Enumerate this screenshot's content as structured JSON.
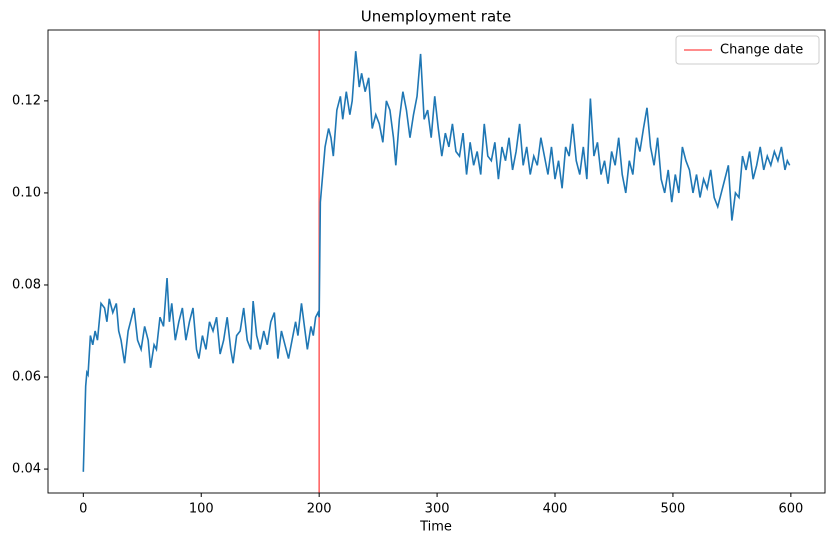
{
  "chart_data": {
    "type": "line",
    "title": "Unemployment rate",
    "xlabel": "Time",
    "x": [
      0,
      2,
      3,
      4,
      6,
      8,
      10,
      12,
      15,
      18,
      20,
      22,
      25,
      28,
      30,
      32,
      35,
      38,
      40,
      43,
      46,
      49,
      52,
      55,
      57,
      60,
      62,
      65,
      68,
      71,
      73,
      75,
      78,
      81,
      84,
      87,
      90,
      93,
      96,
      98,
      101,
      104,
      107,
      110,
      113,
      116,
      119,
      122,
      125,
      127,
      130,
      133,
      136,
      139,
      142,
      144,
      147,
      150,
      153,
      156,
      159,
      162,
      165,
      168,
      171,
      174,
      177,
      180,
      182,
      185,
      188,
      190,
      193,
      195,
      197,
      199,
      200,
      201,
      203,
      205,
      208,
      210,
      212,
      215,
      218,
      220,
      223,
      226,
      228,
      231,
      234,
      236,
      239,
      242,
      245,
      248,
      251,
      254,
      257,
      260,
      263,
      265,
      268,
      271,
      274,
      277,
      280,
      283,
      286,
      289,
      292,
      295,
      298,
      301,
      304,
      307,
      310,
      313,
      316,
      319,
      322,
      325,
      328,
      331,
      334,
      337,
      340,
      343,
      346,
      349,
      352,
      355,
      358,
      361,
      364,
      367,
      370,
      373,
      376,
      379,
      382,
      385,
      388,
      391,
      394,
      397,
      400,
      403,
      406,
      409,
      412,
      415,
      418,
      421,
      424,
      427,
      430,
      433,
      436,
      439,
      442,
      445,
      448,
      451,
      454,
      457,
      460,
      463,
      466,
      469,
      472,
      475,
      478,
      481,
      484,
      487,
      490,
      493,
      496,
      499,
      502,
      505,
      508,
      511,
      514,
      517,
      520,
      523,
      526,
      529,
      532,
      535,
      538,
      541,
      544,
      547,
      550,
      553,
      556,
      559,
      562,
      565,
      568,
      571,
      574,
      577,
      580,
      583,
      586,
      589,
      592,
      595,
      597,
      599
    ],
    "series": [
      {
        "color": "#1f77b4",
        "values": [
          0.0394,
          0.058,
          0.061,
          0.0605,
          0.069,
          0.067,
          0.07,
          0.068,
          0.076,
          0.075,
          0.072,
          0.077,
          0.074,
          0.076,
          0.07,
          0.068,
          0.063,
          0.07,
          0.072,
          0.075,
          0.068,
          0.066,
          0.071,
          0.068,
          0.062,
          0.067,
          0.066,
          0.073,
          0.071,
          0.0815,
          0.072,
          0.076,
          0.068,
          0.072,
          0.075,
          0.068,
          0.072,
          0.075,
          0.066,
          0.064,
          0.069,
          0.066,
          0.072,
          0.07,
          0.073,
          0.065,
          0.068,
          0.073,
          0.066,
          0.063,
          0.069,
          0.07,
          0.075,
          0.068,
          0.066,
          0.0765,
          0.069,
          0.066,
          0.07,
          0.067,
          0.072,
          0.074,
          0.064,
          0.07,
          0.067,
          0.064,
          0.068,
          0.072,
          0.069,
          0.076,
          0.07,
          0.066,
          0.071,
          0.069,
          0.073,
          0.074,
          0.073,
          0.098,
          0.104,
          0.11,
          0.114,
          0.112,
          0.108,
          0.118,
          0.121,
          0.116,
          0.122,
          0.117,
          0.12,
          0.1308,
          0.123,
          0.126,
          0.122,
          0.125,
          0.114,
          0.117,
          0.115,
          0.111,
          0.12,
          0.118,
          0.112,
          0.106,
          0.116,
          0.122,
          0.118,
          0.112,
          0.117,
          0.121,
          0.1302,
          0.116,
          0.118,
          0.112,
          0.121,
          0.114,
          0.108,
          0.113,
          0.11,
          0.115,
          0.109,
          0.108,
          0.113,
          0.104,
          0.111,
          0.106,
          0.109,
          0.104,
          0.115,
          0.108,
          0.107,
          0.111,
          0.103,
          0.11,
          0.107,
          0.112,
          0.105,
          0.109,
          0.115,
          0.106,
          0.11,
          0.104,
          0.108,
          0.106,
          0.112,
          0.108,
          0.104,
          0.11,
          0.103,
          0.107,
          0.101,
          0.11,
          0.108,
          0.115,
          0.107,
          0.104,
          0.11,
          0.103,
          0.1205,
          0.108,
          0.111,
          0.104,
          0.107,
          0.102,
          0.109,
          0.106,
          0.112,
          0.104,
          0.1,
          0.107,
          0.104,
          0.112,
          0.109,
          0.114,
          0.1185,
          0.11,
          0.106,
          0.112,
          0.103,
          0.1,
          0.105,
          0.098,
          0.104,
          0.1,
          0.11,
          0.107,
          0.105,
          0.1,
          0.104,
          0.099,
          0.103,
          0.101,
          0.105,
          0.099,
          0.097,
          0.1,
          0.103,
          0.106,
          0.094,
          0.1,
          0.099,
          0.108,
          0.105,
          0.109,
          0.103,
          0.106,
          0.11,
          0.105,
          0.108,
          0.106,
          0.109,
          0.107,
          0.11,
          0.105,
          0.107,
          0.106
        ]
      }
    ],
    "vline": {
      "x": 200,
      "name": "Change date",
      "color": "#ff6666"
    },
    "legend": "upper right",
    "xlim": [
      -29.95,
      628.95
    ],
    "xticks": [
      0,
      100,
      200,
      300,
      400,
      500,
      600
    ],
    "ylim": [
      0.0348,
      0.1354
    ],
    "yticks": [
      0.04,
      0.06,
      0.08,
      {
        "value": 0.1,
        "label": "0.10"
      },
      0.12
    ]
  }
}
